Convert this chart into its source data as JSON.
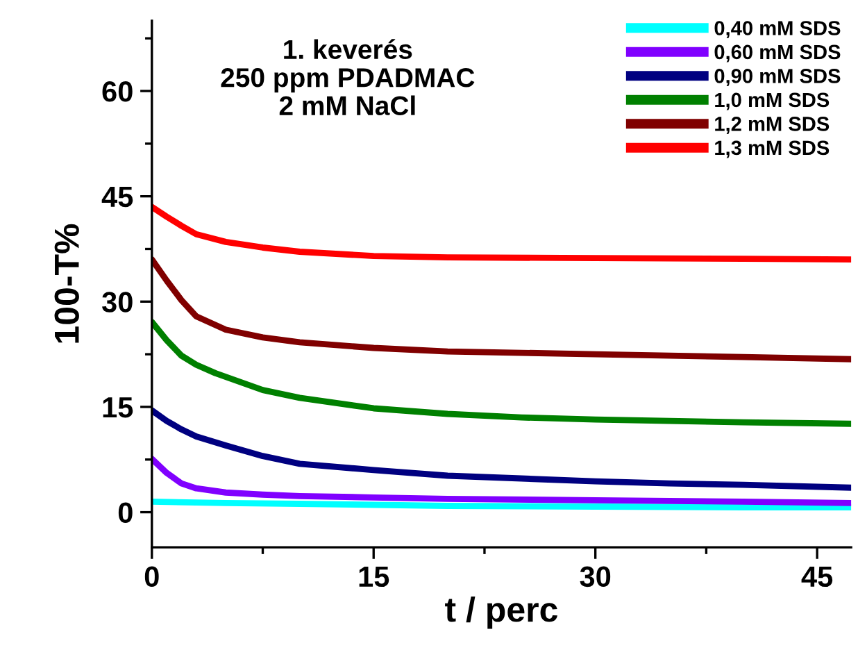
{
  "chart_data": {
    "type": "line",
    "xlabel": "t / perc",
    "ylabel": "100-T%",
    "annotations": [
      "1. keverés\n250 ppm PDADMAC\n2 mM NaCl"
    ],
    "xlim": [
      0,
      47.3
    ],
    "ylim": [
      -5,
      70
    ],
    "xticks": [
      0,
      15,
      30,
      45
    ],
    "yticks": [
      0,
      15,
      30,
      45,
      60
    ],
    "legend": "top right",
    "grid": false,
    "line_style": "solid",
    "marker": "none",
    "series": [
      {
        "name": "0,40 mM SDS",
        "color": "#00ffff",
        "x": [
          0,
          5,
          10,
          20,
          30,
          40,
          47.3
        ],
        "values": [
          1.5,
          1.3,
          1.2,
          0.9,
          0.8,
          0.7,
          0.7
        ]
      },
      {
        "name": "0,60 mM SDS",
        "color": "#8000ff",
        "x": [
          0,
          1,
          2,
          3,
          5,
          7.5,
          10,
          15,
          20,
          30,
          40,
          47.3
        ],
        "values": [
          7.6,
          5.6,
          4.1,
          3.4,
          2.8,
          2.5,
          2.3,
          2.1,
          1.9,
          1.7,
          1.5,
          1.3
        ]
      },
      {
        "name": "0,90 mM SDS",
        "color": "#000080",
        "x": [
          0,
          1,
          2,
          3,
          5,
          7.5,
          10,
          15,
          20,
          25,
          30,
          35,
          40,
          47.3
        ],
        "values": [
          14.5,
          13.0,
          11.8,
          10.8,
          9.5,
          8.0,
          6.9,
          6.0,
          5.2,
          4.8,
          4.4,
          4.1,
          3.9,
          3.5
        ]
      },
      {
        "name": "1,0 mM SDS",
        "color": "#008000",
        "x": [
          0,
          1,
          2,
          3,
          4.3,
          7.5,
          10,
          15,
          20,
          25,
          30,
          35,
          40,
          47.3
        ],
        "values": [
          27.1,
          24.5,
          22.3,
          21.0,
          19.8,
          17.4,
          16.3,
          14.8,
          14.0,
          13.5,
          13.2,
          13.0,
          12.8,
          12.6
        ]
      },
      {
        "name": "1,2 mM SDS",
        "color": "#800000",
        "x": [
          0,
          1,
          2,
          3,
          5,
          7.5,
          10,
          15,
          20,
          25,
          30,
          40,
          47.3
        ],
        "values": [
          36.0,
          33.0,
          30.2,
          27.9,
          26.0,
          24.9,
          24.2,
          23.4,
          22.9,
          22.7,
          22.5,
          22.1,
          21.8
        ]
      },
      {
        "name": "1,3 mM SDS",
        "color": "#ff0000",
        "x": [
          0,
          1,
          2,
          3,
          5,
          7.5,
          10,
          15,
          20,
          30,
          40,
          47.3
        ],
        "values": [
          43.5,
          42.1,
          40.8,
          39.6,
          38.5,
          37.7,
          37.1,
          36.5,
          36.3,
          36.2,
          36.1,
          36.0
        ]
      }
    ]
  }
}
